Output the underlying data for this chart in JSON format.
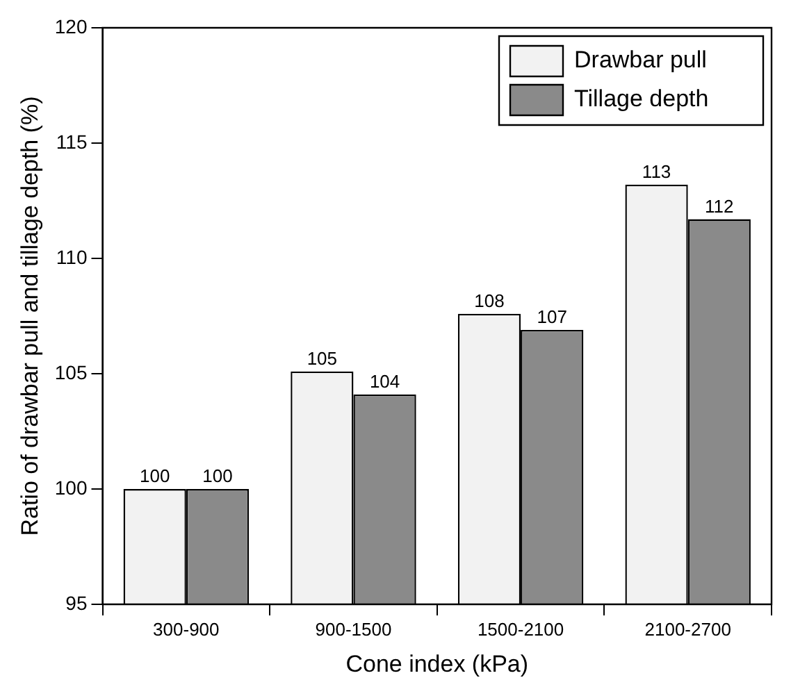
{
  "chart_data": {
    "type": "bar",
    "xlabel": "Cone index (kPa)",
    "ylabel": "Ratio of drawbar pull and tillage depth (%)",
    "categories": [
      "300-900",
      "900-1500",
      "1500-2100",
      "2100-2700"
    ],
    "series": [
      {
        "name": "Drawbar pull",
        "color": "#f2f2f2",
        "values": [
          100,
          105.1,
          107.6,
          113.2
        ],
        "value_labels": [
          "100",
          "105",
          "108",
          "113"
        ]
      },
      {
        "name": "Tillage depth",
        "color": "#8a8a8a",
        "values": [
          100,
          104.1,
          106.9,
          111.7
        ],
        "value_labels": [
          "100",
          "104",
          "107",
          "112"
        ]
      }
    ],
    "ylim": [
      95,
      120
    ],
    "yticks": [
      95,
      100,
      105,
      110,
      115,
      120
    ],
    "grid": false,
    "legend": "top right"
  }
}
